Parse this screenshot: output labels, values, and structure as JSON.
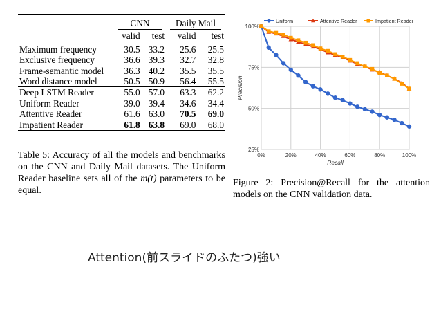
{
  "table": {
    "groups": [
      "CNN",
      "Daily Mail"
    ],
    "subheaders": [
      "valid",
      "test",
      "valid",
      "test"
    ],
    "section1": [
      {
        "name": "Maximum frequency",
        "v": [
          "30.5",
          "33.2",
          "25.6",
          "25.5"
        ],
        "bold": [
          false,
          false,
          false,
          false
        ]
      },
      {
        "name": "Exclusive frequency",
        "v": [
          "36.6",
          "39.3",
          "32.7",
          "32.8"
        ],
        "bold": [
          false,
          false,
          false,
          false
        ]
      },
      {
        "name": "Frame-semantic model",
        "v": [
          "36.3",
          "40.2",
          "35.5",
          "35.5"
        ],
        "bold": [
          false,
          false,
          false,
          false
        ]
      },
      {
        "name": "Word distance model",
        "v": [
          "50.5",
          "50.9",
          "56.4",
          "55.5"
        ],
        "bold": [
          false,
          false,
          false,
          false
        ]
      }
    ],
    "section2": [
      {
        "name": "Deep LSTM Reader",
        "v": [
          "55.0",
          "57.0",
          "63.3",
          "62.2"
        ],
        "bold": [
          false,
          false,
          false,
          false
        ]
      },
      {
        "name": "Uniform Reader",
        "v": [
          "39.0",
          "39.4",
          "34.6",
          "34.4"
        ],
        "bold": [
          false,
          false,
          false,
          false
        ]
      },
      {
        "name": "Attentive Reader",
        "v": [
          "61.6",
          "63.0",
          "70.5",
          "69.0"
        ],
        "bold": [
          false,
          false,
          true,
          true
        ]
      },
      {
        "name": "Impatient Reader",
        "v": [
          "61.8",
          "63.8",
          "69.0",
          "68.0"
        ],
        "bold": [
          true,
          true,
          false,
          false
        ]
      }
    ]
  },
  "caption_left": {
    "before": "Table 5: Accuracy of all the models and benchmarks on the CNN and Daily Mail datasets. The Uniform Reader baseline sets all of the ",
    "math": "m(t)",
    "after": " parameters to be equal."
  },
  "caption_right": "Figure 2: Precision@Recall for the attention models on the CNN validation data.",
  "slide_text": "Attention(前スライドのふたつ)強い",
  "chart_data": {
    "type": "line",
    "xlabel": "Recall",
    "ylabel": "Precision",
    "x_ticks": [
      "0%",
      "20%",
      "40%",
      "60%",
      "80%",
      "100%"
    ],
    "y_ticks": [
      "25%",
      "50%",
      "75%",
      "100%"
    ],
    "xlim": [
      0,
      100
    ],
    "ylim": [
      25,
      100
    ],
    "grid": true,
    "legend_position": "top",
    "x": [
      0,
      5,
      10,
      15,
      20,
      25,
      30,
      35,
      40,
      45,
      50,
      55,
      60,
      65,
      70,
      75,
      80,
      85,
      90,
      95,
      100
    ],
    "series": [
      {
        "name": "Uniform",
        "color": "#3366cc",
        "marker": "circle",
        "values": [
          100,
          87,
          82.5,
          77.5,
          73.5,
          70,
          66,
          63.5,
          61.5,
          59,
          56.5,
          55,
          53,
          51,
          49.5,
          48,
          46,
          44.5,
          43,
          41,
          39
        ]
      },
      {
        "name": "Attentive Reader",
        "color": "#dc3912",
        "marker": "triangle",
        "values": [
          100,
          96.5,
          95.5,
          94,
          92,
          90.5,
          89,
          87.5,
          86,
          84,
          82.5,
          81,
          79,
          77,
          75.5,
          73.5,
          72,
          70,
          68,
          65.5,
          62
        ]
      },
      {
        "name": "Impatient Reader",
        "color": "#ff9900",
        "marker": "square",
        "values": [
          100,
          97,
          96,
          95,
          93,
          91.5,
          90,
          88.5,
          86.5,
          85,
          83,
          81.5,
          79.5,
          77.5,
          75.5,
          74,
          71.5,
          70,
          68,
          65,
          62
        ]
      }
    ]
  }
}
